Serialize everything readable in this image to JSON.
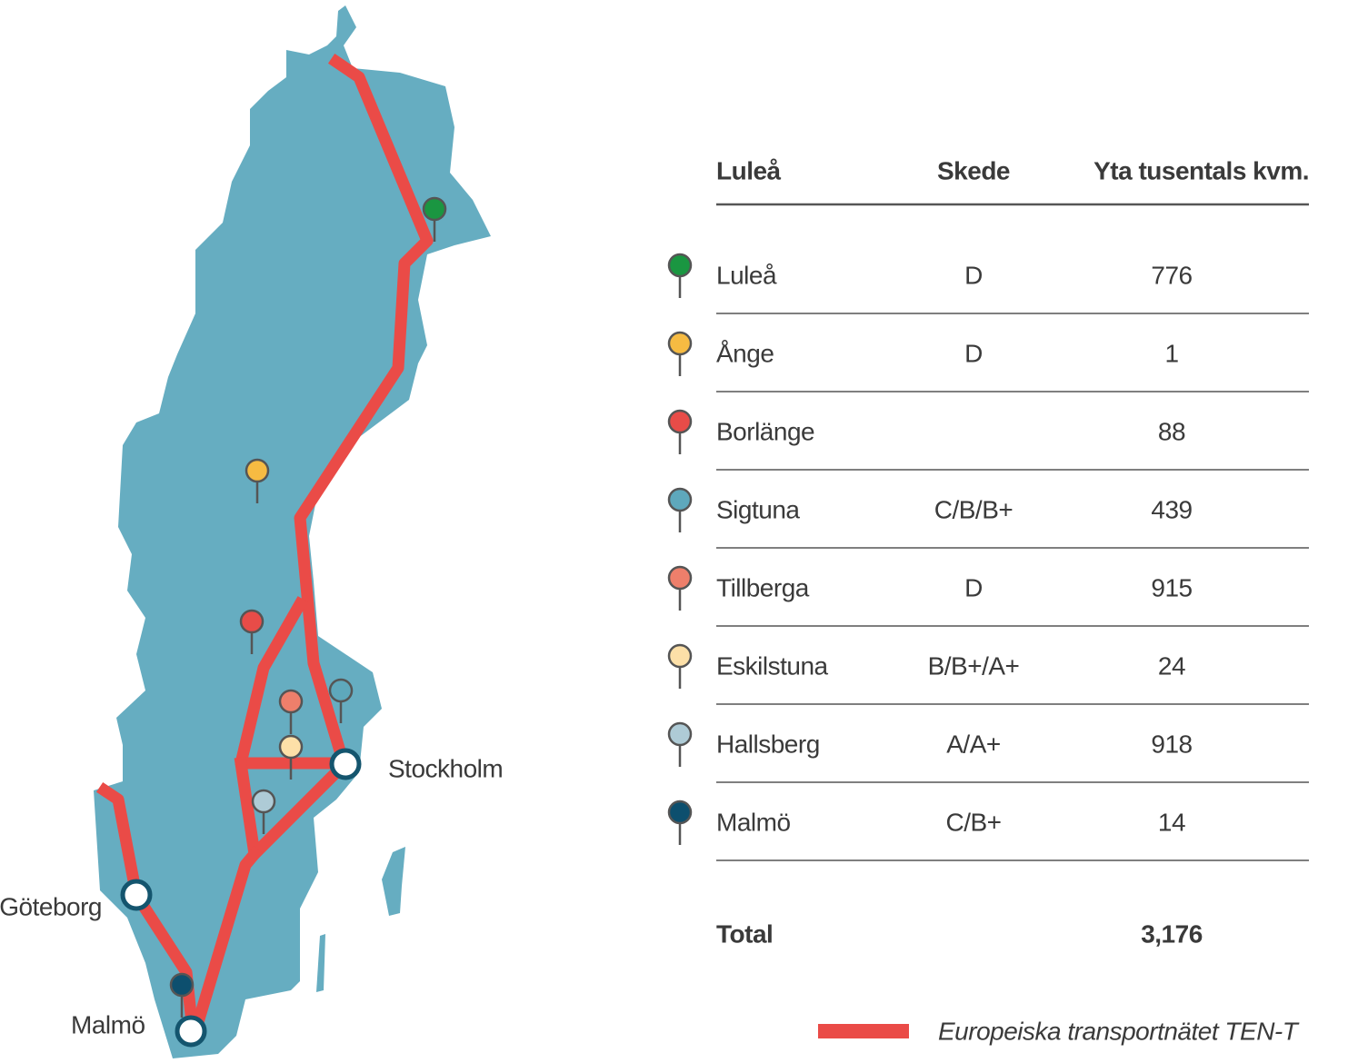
{
  "map": {
    "labels": [
      "Stockholm",
      "Göteborg",
      "Malmö"
    ]
  },
  "table": {
    "header": [
      "Luleå",
      "Skede",
      "Yta tusentals kvm."
    ],
    "rows": [
      [
        "Luleå",
        "D",
        "776"
      ],
      [
        "Ånge",
        "D",
        "1"
      ],
      [
        "Borlänge",
        null,
        "88"
      ],
      [
        "Sigtuna",
        "C/B/B+",
        "439"
      ],
      [
        "Tillberga",
        "D",
        "915"
      ],
      [
        "Eskilstuna",
        "B/B+/A+",
        "24"
      ],
      [
        "Hallsberg",
        "A/A+",
        "918"
      ],
      [
        "Malmö",
        "C/B+",
        "14"
      ]
    ],
    "total": [
      "Total",
      "3,176"
    ]
  },
  "legend": "Europeiska transportnätet TEN-T"
}
